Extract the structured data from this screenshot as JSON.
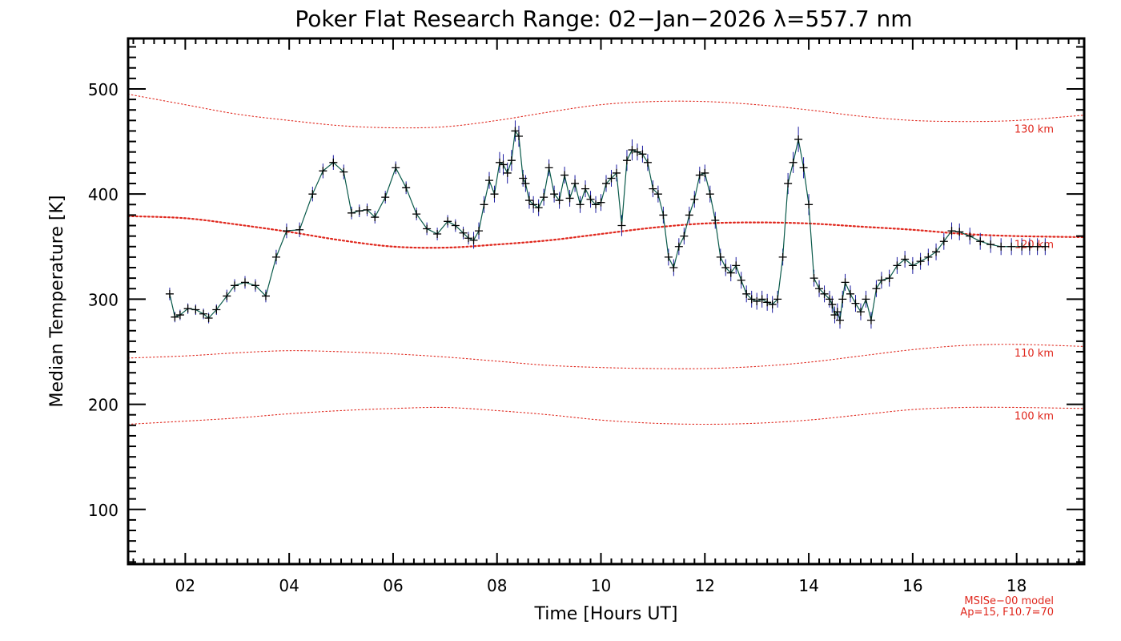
{
  "chart_data": {
    "type": "line",
    "title": "Poker Flat Research Range: 02−Jan−2026 λ=557.7 nm",
    "xlabel": "Time [Hours UT]",
    "ylabel": "Median Temperature [K]",
    "xlim": [
      0.9,
      19.3
    ],
    "ylim": [
      48,
      548
    ],
    "x_ticks": [
      2,
      4,
      6,
      8,
      10,
      12,
      14,
      16,
      18
    ],
    "x_tick_labels": [
      "02",
      "04",
      "06",
      "08",
      "10",
      "12",
      "14",
      "16",
      "18"
    ],
    "y_ticks": [
      100,
      200,
      300,
      400,
      500
    ],
    "y_tick_labels": [
      "100",
      "200",
      "300",
      "400",
      "500"
    ],
    "grid": false,
    "series": [
      {
        "color": "#1a1aa0",
        "line_color": "#0a5a4a",
        "marker": "plus",
        "x": [
          1.7,
          1.8,
          1.9,
          2.05,
          2.2,
          2.35,
          2.45,
          2.6,
          2.8,
          2.95,
          3.15,
          3.35,
          3.55,
          3.75,
          3.95,
          4.2,
          4.45,
          4.65,
          4.85,
          5.05,
          5.2,
          5.35,
          5.5,
          5.65,
          5.85,
          6.05,
          6.25,
          6.45,
          6.65,
          6.85,
          7.05,
          7.2,
          7.35,
          7.45,
          7.55,
          7.65,
          7.75,
          7.85,
          7.95,
          8.05,
          8.12,
          8.2,
          8.28,
          8.35,
          8.42,
          8.5,
          8.55,
          8.62,
          8.7,
          8.8,
          8.9,
          9.0,
          9.1,
          9.2,
          9.3,
          9.4,
          9.5,
          9.6,
          9.7,
          9.8,
          9.9,
          10.0,
          10.1,
          10.2,
          10.3,
          10.4,
          10.5,
          10.6,
          10.7,
          10.8,
          10.9,
          11.0,
          11.1,
          11.2,
          11.3,
          11.4,
          11.5,
          11.6,
          11.7,
          11.8,
          11.9,
          12.0,
          12.1,
          12.2,
          12.3,
          12.4,
          12.5,
          12.6,
          12.7,
          12.8,
          12.9,
          13.0,
          13.1,
          13.2,
          13.3,
          13.4,
          13.5,
          13.6,
          13.7,
          13.8,
          13.9,
          14.0,
          14.1,
          14.2,
          14.3,
          14.4,
          14.45,
          14.5,
          14.55,
          14.6,
          14.65,
          14.7,
          14.8,
          14.9,
          15.0,
          15.1,
          15.2,
          15.3,
          15.4,
          15.55,
          15.7,
          15.85,
          16.0,
          16.15,
          16.3,
          16.45,
          16.6,
          16.75,
          16.9,
          17.1,
          17.3,
          17.5,
          17.7,
          17.9,
          18.1,
          18.25,
          18.4,
          18.55
        ],
        "y": [
          305,
          283,
          285,
          291,
          290,
          286,
          282,
          290,
          303,
          313,
          316,
          313,
          303,
          340,
          365,
          366,
          400,
          422,
          430,
          421,
          382,
          384,
          385,
          378,
          397,
          425,
          406,
          381,
          367,
          362,
          374,
          370,
          363,
          358,
          356,
          365,
          390,
          413,
          400,
          430,
          428,
          420,
          432,
          460,
          455,
          415,
          410,
          394,
          390,
          387,
          397,
          425,
          400,
          394,
          418,
          396,
          410,
          390,
          405,
          395,
          390,
          392,
          410,
          415,
          420,
          370,
          432,
          442,
          440,
          438,
          430,
          405,
          400,
          380,
          340,
          330,
          350,
          360,
          380,
          395,
          418,
          420,
          400,
          375,
          340,
          330,
          325,
          332,
          318,
          305,
          300,
          298,
          300,
          297,
          295,
          300,
          340,
          410,
          430,
          452,
          425,
          390,
          320,
          310,
          305,
          300,
          295,
          285,
          288,
          280,
          300,
          316,
          305,
          296,
          288,
          300,
          280,
          310,
          318,
          320,
          332,
          338,
          332,
          336,
          340,
          345,
          355,
          365,
          364,
          360,
          355,
          352,
          350,
          350,
          350,
          350,
          350,
          350
        ],
        "y_err": [
          6,
          5,
          5,
          5,
          5,
          5,
          5,
          5,
          6,
          6,
          6,
          6,
          6,
          7,
          7,
          7,
          7,
          7,
          7,
          7,
          6,
          6,
          6,
          6,
          6,
          6,
          6,
          6,
          6,
          6,
          6,
          6,
          6,
          6,
          8,
          8,
          8,
          8,
          8,
          10,
          10,
          10,
          10,
          10,
          10,
          8,
          8,
          8,
          8,
          8,
          8,
          8,
          8,
          8,
          8,
          8,
          8,
          8,
          8,
          8,
          8,
          8,
          8,
          8,
          8,
          10,
          10,
          10,
          8,
          8,
          8,
          8,
          8,
          8,
          8,
          8,
          8,
          8,
          8,
          8,
          8,
          8,
          8,
          8,
          8,
          8,
          8,
          8,
          8,
          8,
          8,
          8,
          8,
          8,
          8,
          8,
          8,
          10,
          10,
          12,
          10,
          10,
          8,
          8,
          8,
          8,
          8,
          8,
          8,
          8,
          8,
          8,
          8,
          8,
          8,
          8,
          8,
          8,
          8,
          8,
          8,
          8,
          8,
          8,
          8,
          8,
          8,
          8,
          8,
          8,
          8,
          8,
          8,
          8,
          8,
          8,
          8,
          8
        ]
      }
    ],
    "model_curves": [
      {
        "label": "130 km",
        "color": "#e0281e",
        "style": "dotted",
        "x": [
          0.9,
          2,
          3,
          4,
          5,
          6,
          7,
          8,
          9,
          10,
          11,
          12,
          13,
          14,
          15,
          16,
          17,
          18,
          19.3
        ],
        "y": [
          495,
          485,
          476,
          470,
          465,
          463,
          464,
          470,
          478,
          485,
          488,
          488,
          485,
          480,
          474,
          470,
          469,
          470,
          475
        ]
      },
      {
        "label": "120 km",
        "color": "#e0281e",
        "style": "dotted-bold",
        "x": [
          0.9,
          2,
          3,
          4,
          5,
          6,
          7,
          8,
          9,
          10,
          11,
          12,
          13,
          14,
          15,
          16,
          17,
          18,
          19.3
        ],
        "y": [
          379,
          377,
          371,
          364,
          356,
          350,
          349,
          352,
          356,
          362,
          368,
          372,
          373,
          372,
          369,
          366,
          362,
          360,
          359
        ]
      },
      {
        "label": "110 km",
        "color": "#e0281e",
        "style": "dotted",
        "x": [
          0.9,
          2,
          3,
          4,
          5,
          6,
          7,
          8,
          9,
          10,
          11,
          12,
          13,
          14,
          15,
          16,
          17,
          18,
          19.3
        ],
        "y": [
          244,
          246,
          249,
          251,
          250,
          248,
          245,
          241,
          237,
          235,
          234,
          234,
          236,
          240,
          246,
          252,
          256,
          257,
          255
        ]
      },
      {
        "label": "100 km",
        "color": "#e0281e",
        "style": "dotted",
        "x": [
          0.9,
          2,
          3,
          4,
          5,
          6,
          7,
          8,
          9,
          10,
          11,
          12,
          13,
          14,
          15,
          16,
          17,
          18,
          19.3
        ],
        "y": [
          181,
          184,
          187,
          191,
          194,
          196,
          197,
          194,
          190,
          185,
          182,
          181,
          182,
          185,
          190,
          195,
          197,
          197,
          196
        ]
      }
    ],
    "model_note": {
      "line1": "MSISe−00 model",
      "line2": "Ap=15, F10.7=70"
    }
  }
}
